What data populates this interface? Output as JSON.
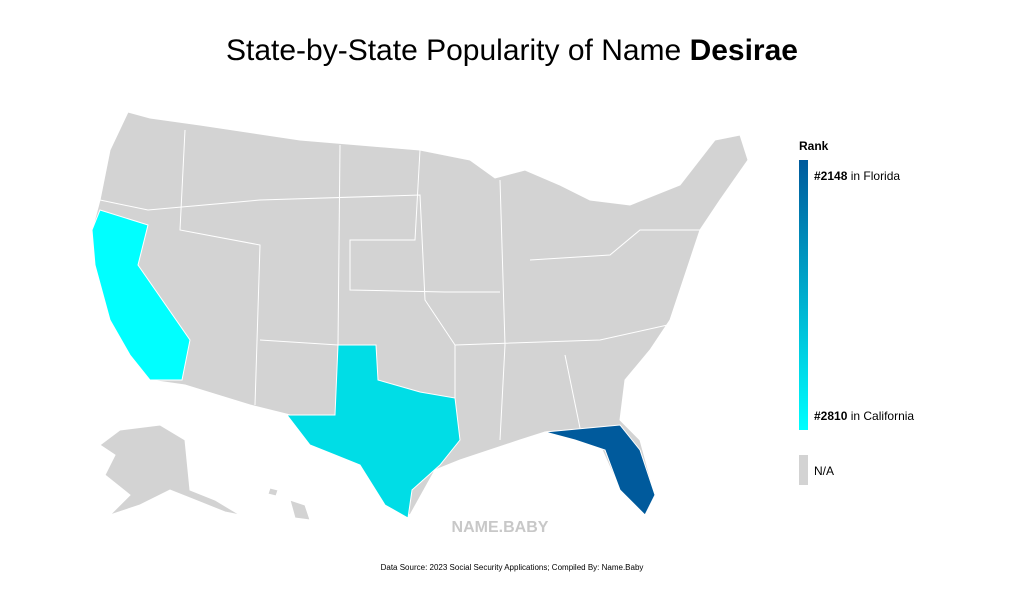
{
  "title": {
    "text": "State-by-State Popularity of Name",
    "name": "Desirae"
  },
  "legend": {
    "title": "Rank",
    "max": {
      "rank": {
        "value": 2148,
        "label": "#2148"
      },
      "state": "in Florida"
    },
    "min": {
      "rank": {
        "value": 2810,
        "label": "#2810"
      },
      "state": "in California"
    },
    "na": "N/A",
    "colors": {
      "high": "#005a9c",
      "mid": "#00dde6",
      "low": "#00ffff",
      "na": "#d3d3d3"
    }
  },
  "watermark": "NAME.BABY",
  "source": "Data Source: 2023 Social Security Applications; Compiled By: Name.Baby"
}
